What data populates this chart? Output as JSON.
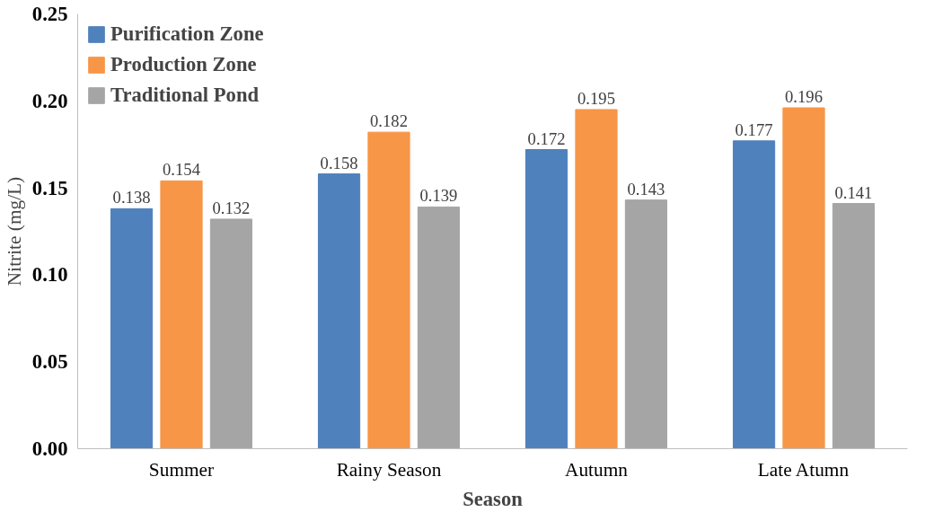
{
  "chart_data": {
    "type": "bar",
    "xlabel": "Season",
    "ylabel": "Nitrite (mg/L)",
    "categories": [
      "Summer",
      "Rainy Season",
      "Autumn",
      "Late Atumn"
    ],
    "series": [
      {
        "name": "Purification Zone",
        "color": "#4f81bd",
        "values": [
          0.138,
          0.158,
          0.172,
          0.177
        ]
      },
      {
        "name": "Production Zone",
        "color": "#f79646",
        "values": [
          0.154,
          0.182,
          0.195,
          0.196
        ]
      },
      {
        "name": "Traditional Pond",
        "color": "#a5a5a5",
        "values": [
          0.132,
          0.139,
          0.143,
          0.141
        ]
      }
    ],
    "ylim": [
      0,
      0.25
    ],
    "yticks": [
      {
        "value": 0,
        "label": "0.00"
      },
      {
        "value": 0.05,
        "label": "0.05"
      },
      {
        "value": 0.1,
        "label": "0.10"
      },
      {
        "value": 0.15,
        "label": "0.15"
      },
      {
        "value": 0.2,
        "label": "0.20"
      },
      {
        "value": 0.25,
        "label": "0.25"
      }
    ],
    "grid": false,
    "legend": "top left",
    "data_labels": true
  }
}
